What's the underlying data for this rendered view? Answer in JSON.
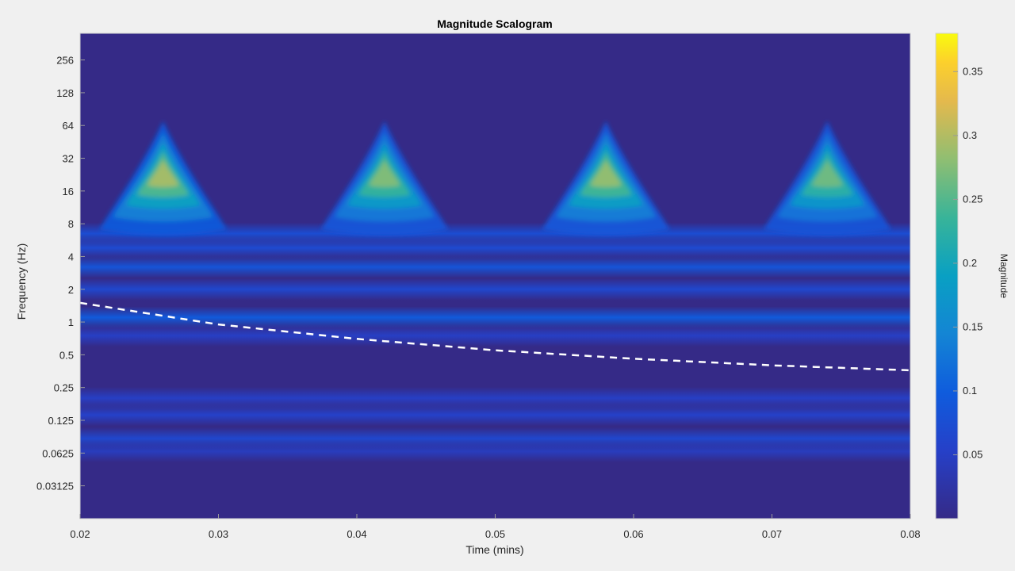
{
  "chart_data": {
    "type": "heatmap",
    "title": "Magnitude Scalogram",
    "xlabel": "Time (mins)",
    "ylabel": "Frequency (Hz)",
    "xlim": [
      0.02,
      0.08
    ],
    "x_ticks": [
      0.02,
      0.03,
      0.04,
      0.05,
      0.06,
      0.07,
      0.08
    ],
    "x_tick_labels": [
      "0.02",
      "0.03",
      "0.04",
      "0.05",
      "0.06",
      "0.07",
      "0.08"
    ],
    "y_scale": "log2",
    "ylim": [
      0.0156,
      450
    ],
    "y_ticks": [
      0.03125,
      0.0625,
      0.125,
      0.25,
      0.5,
      1,
      2,
      4,
      8,
      16,
      32,
      64,
      128,
      256
    ],
    "y_tick_labels": [
      "0.03125",
      "0.0625",
      "0.125",
      "0.25",
      "0.5",
      "1",
      "2",
      "4",
      "8",
      "16",
      "32",
      "64",
      "128",
      "256"
    ],
    "colorbar": {
      "label": "Magnitude",
      "range": [
        0,
        0.38
      ],
      "ticks": [
        0.05,
        0.1,
        0.15,
        0.2,
        0.25,
        0.3,
        0.35
      ],
      "tick_labels": [
        "0.05",
        "0.1",
        "0.15",
        "0.2",
        "0.25",
        "0.3",
        "0.35"
      ],
      "colormap": "parula"
    },
    "peaks": [
      {
        "time": 0.026,
        "frequency": 24,
        "magnitude": 0.31
      },
      {
        "time": 0.042,
        "frequency": 24,
        "magnitude": 0.29
      },
      {
        "time": 0.058,
        "frequency": 24,
        "magnitude": 0.3
      },
      {
        "time": 0.074,
        "frequency": 24,
        "magnitude": 0.28
      }
    ],
    "bands": [
      {
        "frequency": 6.5,
        "magnitude": 0.075
      },
      {
        "frequency": 4.8,
        "magnitude": 0.07
      },
      {
        "frequency": 3.2,
        "magnitude": 0.085
      },
      {
        "frequency": 2.0,
        "magnitude": 0.065
      },
      {
        "frequency": 1.1,
        "magnitude": 0.095
      },
      {
        "frequency": 0.75,
        "magnitude": 0.05
      },
      {
        "frequency": 0.2,
        "magnitude": 0.05
      },
      {
        "frequency": 0.14,
        "magnitude": 0.055
      },
      {
        "frequency": 0.085,
        "magnitude": 0.065
      },
      {
        "frequency": 0.065,
        "magnitude": 0.045
      }
    ],
    "cone_of_influence": {
      "style": "dashed",
      "color": "#ffffff",
      "x": [
        0.02,
        0.03,
        0.04,
        0.05,
        0.06,
        0.07,
        0.08
      ],
      "y": [
        1.5,
        0.95,
        0.7,
        0.55,
        0.46,
        0.4,
        0.36
      ]
    },
    "colors": {
      "background": "#352a87",
      "figure_bg": "#f0f0f0",
      "cone_line": "#ffffff"
    }
  }
}
